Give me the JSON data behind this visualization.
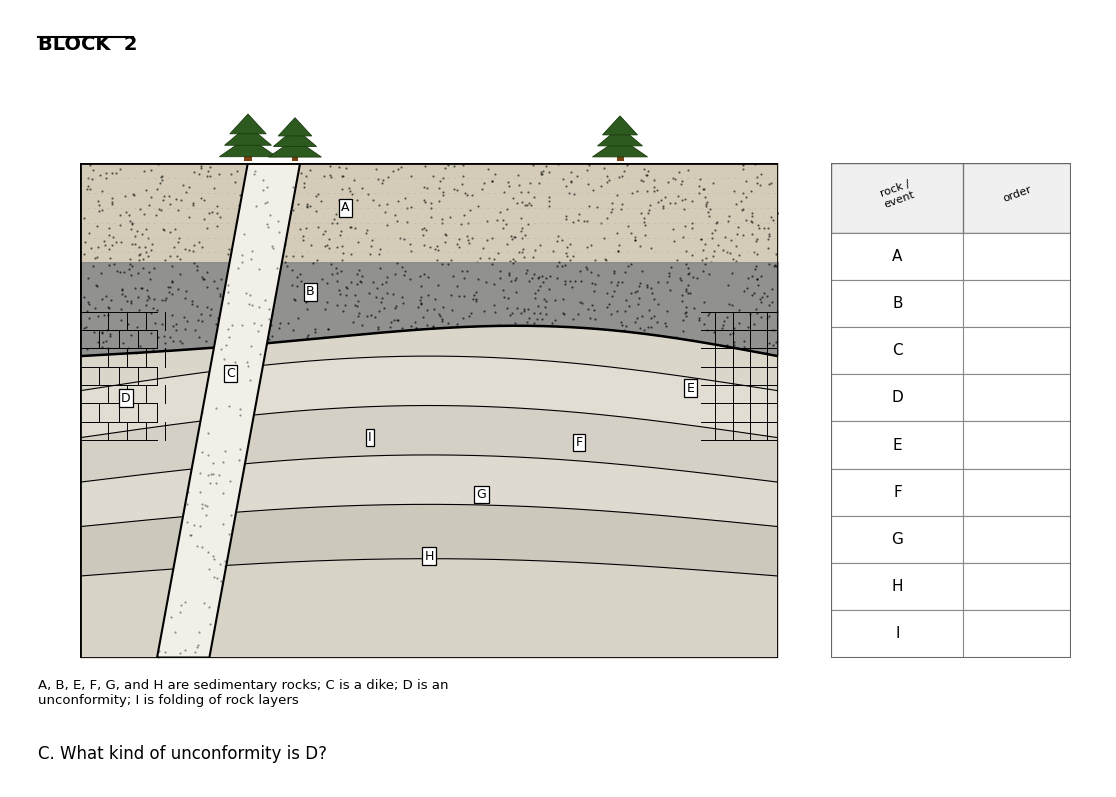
{
  "title": "BLOCK  2",
  "caption": "A, B, E, F, G, and H are sedimentary rocks; C is a dike; D is an\nunconformity; I is folding of rock layers",
  "question": "C. What kind of unconformity is D?",
  "table_rows": [
    "A",
    "B",
    "C",
    "D",
    "E",
    "F",
    "G",
    "H",
    "I"
  ],
  "colors": {
    "layer_A": "#d8cdb8",
    "layer_B": "#909090",
    "layer_below": "#e0dbd2",
    "dike": "#f0ede8",
    "tree_dark": "#2d5a2d",
    "tree_trunk": "#8B4513"
  }
}
